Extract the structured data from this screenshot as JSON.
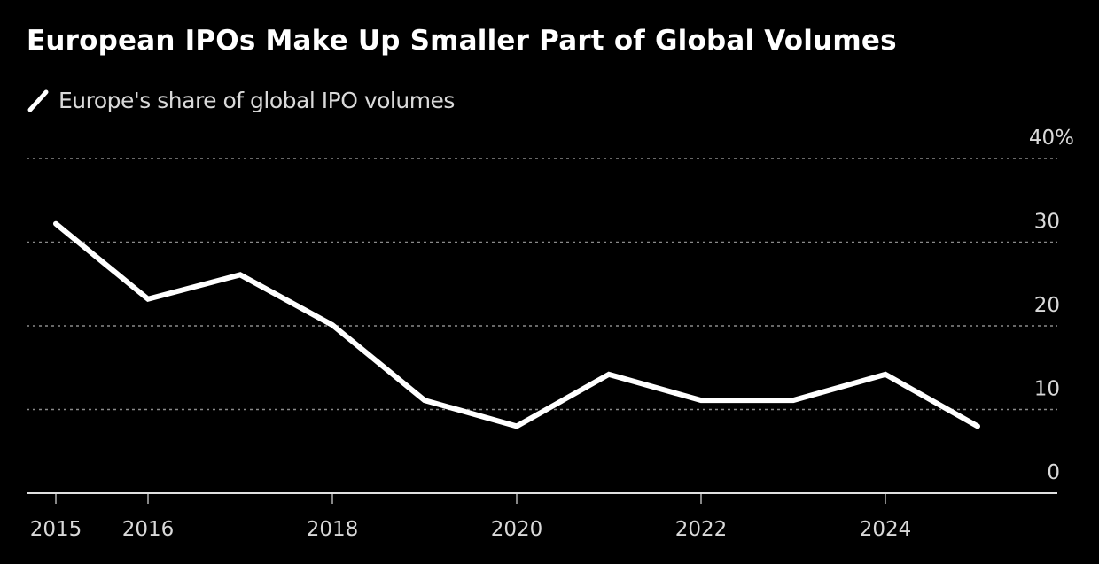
{
  "chart_data": {
    "type": "line",
    "title": "European IPOs Make Up Smaller Part of Global Volumes",
    "xlabel": "",
    "ylabel": "",
    "x": [
      2015,
      2016,
      2017,
      2018,
      2019,
      2020,
      2021,
      2022,
      2023,
      2024,
      2025
    ],
    "series": [
      {
        "name": "Europe's share of global IPO volumes",
        "color": "#ffffff",
        "values": [
          32.2,
          23.2,
          26.1,
          20.1,
          11.1,
          8.0,
          14.2,
          11.1,
          11.1,
          14.2,
          8.0
        ]
      }
    ],
    "ylim": [
      0,
      40
    ],
    "xlim": [
      2015,
      2026
    ],
    "y_ticks": [
      {
        "value": 40,
        "label": "40%"
      },
      {
        "value": 30,
        "label": "30"
      },
      {
        "value": 20,
        "label": "20"
      },
      {
        "value": 10,
        "label": "10"
      },
      {
        "value": 0,
        "label": "0"
      }
    ],
    "x_ticks": [
      {
        "value": 2015,
        "label": "2015"
      },
      {
        "value": 2016,
        "label": "2016"
      },
      {
        "value": 2018,
        "label": "2018"
      },
      {
        "value": 2020,
        "label": "2020"
      },
      {
        "value": 2022,
        "label": "2022"
      },
      {
        "value": 2024,
        "label": "2024"
      }
    ],
    "grid": true,
    "y_axis_side": "right",
    "legend_position": "top-left",
    "colors": {
      "background": "#000000",
      "grid": "#8a8a8a",
      "axis": "#e0e0e0",
      "tick_text": "#d9d9d9"
    }
  }
}
